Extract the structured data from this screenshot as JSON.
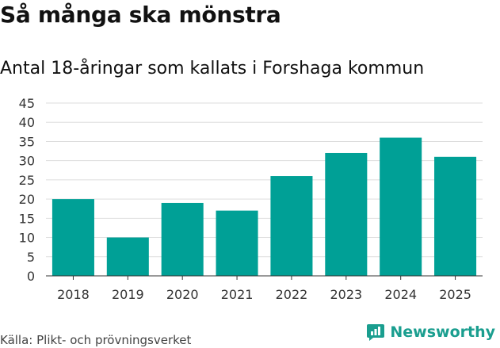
{
  "header": {
    "title": "Så många ska mönstra",
    "subtitle": "Antal 18-åringar som kallats i Forshaga kommun"
  },
  "footer": {
    "source": "Källa: Plikt- och prövningsverket",
    "brand": "Newsworthy"
  },
  "colors": {
    "bar": "#00a096",
    "grid": "#dddddd",
    "axis": "#333333",
    "brand": "#1a9e8f"
  },
  "chart_data": {
    "type": "bar",
    "title": "Så många ska mönstra",
    "subtitle": "Antal 18-åringar som kallats i Forshaga kommun",
    "categories": [
      "2018",
      "2019",
      "2020",
      "2021",
      "2022",
      "2023",
      "2024",
      "2025"
    ],
    "values": [
      20,
      10,
      19,
      17,
      26,
      32,
      36,
      31
    ],
    "xlabel": "",
    "ylabel": "",
    "ylim": [
      0,
      45
    ],
    "yticks": [
      0,
      5,
      10,
      15,
      20,
      25,
      30,
      35,
      40,
      45
    ],
    "grid": true,
    "legend": "none"
  }
}
